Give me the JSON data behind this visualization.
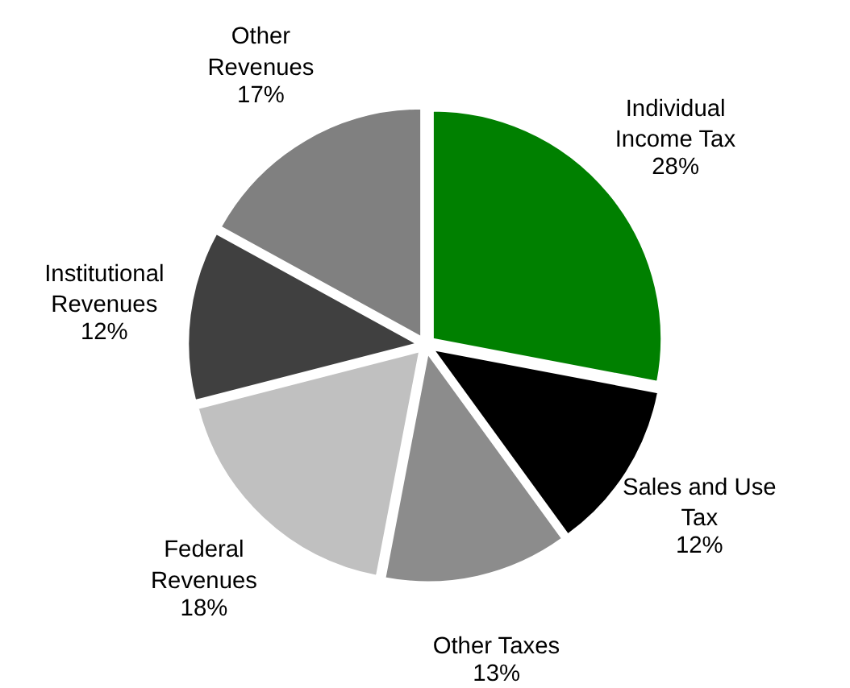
{
  "chart_data": {
    "type": "pie",
    "categories": [
      "Individual Income Tax",
      "Sales and Use Tax",
      "Other Taxes",
      "Federal Revenues",
      "Institutional Revenues",
      "Other Revenues"
    ],
    "values": [
      28,
      12,
      13,
      18,
      12,
      17
    ],
    "value_labels": [
      "28%",
      "12%",
      "13%",
      "18%",
      "12%",
      "17%"
    ],
    "colors": [
      "#008000",
      "#000000",
      "#8c8c8c",
      "#c0c0c0",
      "#404040",
      "#808080"
    ]
  }
}
